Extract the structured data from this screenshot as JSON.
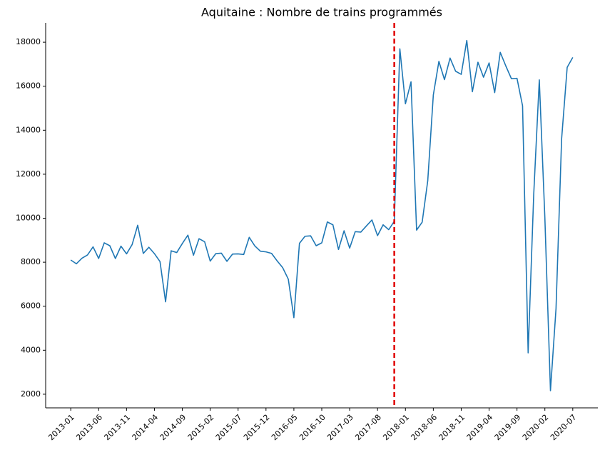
{
  "chart_data": {
    "type": "line",
    "title": "Aquitaine : Nombre de trains programmés",
    "x": [
      "2013-01",
      "2013-02",
      "2013-03",
      "2013-04",
      "2013-05",
      "2013-06",
      "2013-07",
      "2013-08",
      "2013-09",
      "2013-10",
      "2013-11",
      "2013-12",
      "2014-01",
      "2014-02",
      "2014-03",
      "2014-04",
      "2014-05",
      "2014-06",
      "2014-07",
      "2014-08",
      "2014-09",
      "2014-10",
      "2014-11",
      "2014-12",
      "2015-01",
      "2015-02",
      "2015-03",
      "2015-04",
      "2015-05",
      "2015-06",
      "2015-07",
      "2015-08",
      "2015-09",
      "2015-10",
      "2015-11",
      "2015-12",
      "2016-01",
      "2016-02",
      "2016-03",
      "2016-04",
      "2016-05",
      "2016-06",
      "2016-07",
      "2016-08",
      "2016-09",
      "2016-10",
      "2016-11",
      "2016-12",
      "2017-01",
      "2017-02",
      "2017-03",
      "2017-04",
      "2017-05",
      "2017-06",
      "2017-07",
      "2017-08",
      "2017-09",
      "2017-10",
      "2017-11",
      "2017-12",
      "2018-01",
      "2018-02",
      "2018-03",
      "2018-04",
      "2018-05",
      "2018-06",
      "2018-07",
      "2018-08",
      "2018-09",
      "2018-10",
      "2018-11",
      "2018-12",
      "2019-01",
      "2019-02",
      "2019-03",
      "2019-04",
      "2019-05",
      "2019-06",
      "2019-07",
      "2019-08",
      "2019-09",
      "2019-10",
      "2019-11",
      "2019-12",
      "2020-01",
      "2020-02",
      "2020-03",
      "2020-04",
      "2020-05",
      "2020-06",
      "2020-07"
    ],
    "values": [
      8100,
      7930,
      8180,
      8330,
      8700,
      8170,
      8880,
      8750,
      8170,
      8730,
      8380,
      8800,
      9680,
      8400,
      8680,
      8390,
      8030,
      6200,
      8520,
      8440,
      8850,
      9230,
      8320,
      9070,
      8930,
      8050,
      8390,
      8410,
      8040,
      8370,
      8380,
      8350,
      9130,
      8740,
      8500,
      8470,
      8400,
      8060,
      7750,
      7230,
      5480,
      8860,
      9180,
      9200,
      8750,
      8880,
      9830,
      9700,
      8580,
      9430,
      8640,
      9390,
      9370,
      9650,
      9920,
      9210,
      9700,
      9480,
      9860,
      17700,
      15200,
      16200,
      9460,
      9820,
      11700,
      15600,
      17130,
      16300,
      17280,
      16680,
      16540,
      18080,
      15750,
      17090,
      16410,
      17060,
      15710,
      17540,
      16920,
      16340,
      16360,
      15110,
      3880,
      11080,
      16290,
      10000,
      2160,
      5900,
      13600,
      16860,
      17310
    ],
    "color": "#1f77b4",
    "vline": "2017-11",
    "vline_color": "#e00000",
    "xticks": [
      "2013-01",
      "2013-06",
      "2013-11",
      "2014-04",
      "2014-09",
      "2015-02",
      "2015-07",
      "2015-12",
      "2016-05",
      "2016-10",
      "2017-03",
      "2017-08",
      "2018-01",
      "2018-06",
      "2018-11",
      "2019-04",
      "2019-09",
      "2020-02",
      "2020-07"
    ],
    "ylim": [
      1380,
      18880
    ],
    "yticks": [
      2000,
      4000,
      6000,
      8000,
      10000,
      12000,
      14000,
      16000,
      18000
    ]
  }
}
